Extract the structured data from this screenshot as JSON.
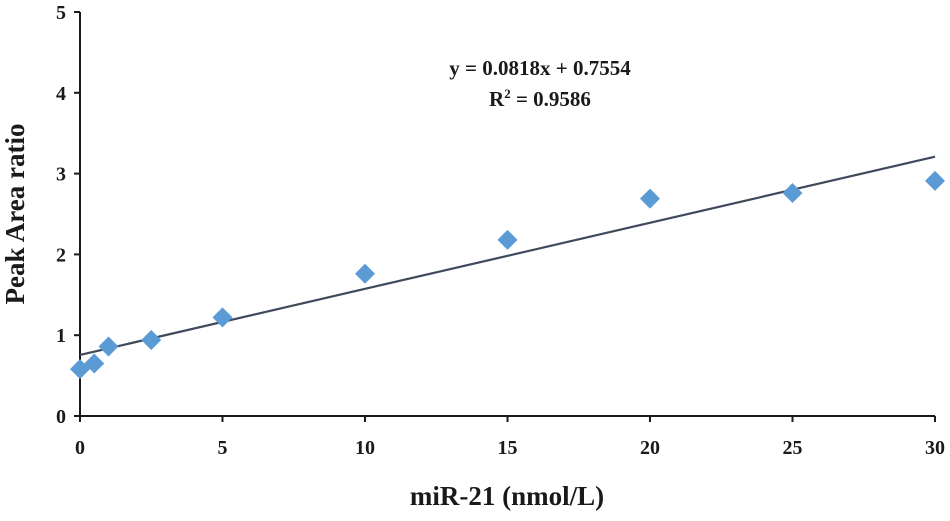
{
  "chart_data": {
    "type": "scatter",
    "xlabel": "miR-21  (nmol/L)",
    "ylabel": "Peak  Area ratio",
    "xlim": [
      0,
      30
    ],
    "ylim": [
      0,
      5
    ],
    "x_ticks": [
      "0",
      "5",
      "10",
      "15",
      "20",
      "25",
      "30"
    ],
    "y_ticks": [
      "0",
      "1",
      "2",
      "3",
      "4",
      "5"
    ],
    "grid": false,
    "points": [
      {
        "x": 0,
        "y": 0.58
      },
      {
        "x": 0.5,
        "y": 0.65
      },
      {
        "x": 1,
        "y": 0.86
      },
      {
        "x": 2.5,
        "y": 0.94
      },
      {
        "x": 5,
        "y": 1.22
      },
      {
        "x": 10,
        "y": 1.76
      },
      {
        "x": 15,
        "y": 2.18
      },
      {
        "x": 20,
        "y": 2.69
      },
      {
        "x": 25,
        "y": 2.76
      },
      {
        "x": 30,
        "y": 2.91
      }
    ],
    "trendline": {
      "slope": 0.0818,
      "intercept": 0.7554
    },
    "annotation": {
      "equation": "y = 0.0818x + 0.7554",
      "r2_prefix": "R",
      "r2_sup": "2",
      "r2_value": " = 0.9586"
    },
    "colors": {
      "marker": "#5b9bd5",
      "trendline": "#3f4a5c",
      "axis": "#1a1a1a"
    }
  }
}
